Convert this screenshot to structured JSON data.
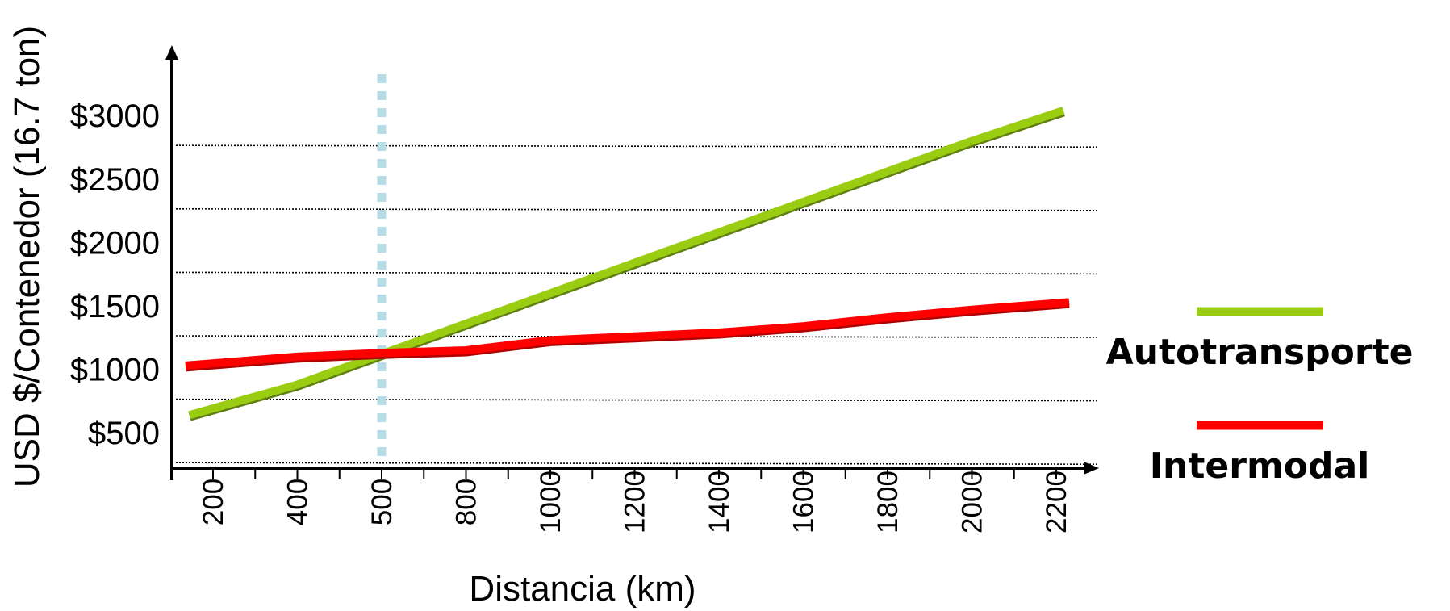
{
  "chart_data": {
    "type": "line",
    "title": "",
    "xlabel": "Distancia (km)",
    "ylabel": "USD $/Contenedor (16.7 ton)",
    "x_tick_labels": [
      "200",
      "400",
      "500",
      "800",
      "1000",
      "1200",
      "1400",
      "1600",
      "1800",
      "2000",
      "2200"
    ],
    "y_tick_labels": [
      "$500",
      "$1000",
      "$1500",
      "$2000",
      "$2500",
      "$3000"
    ],
    "y_tick_values": [
      500,
      1000,
      1500,
      2000,
      2500,
      3000
    ],
    "ylim": [
      200,
      3500
    ],
    "grid": true,
    "reference_line": {
      "x_label": "500",
      "style": "dashed",
      "color": "#b4dde6"
    },
    "legend_position": "right",
    "series": [
      {
        "name": "Autotransporte",
        "color": "#9acd12",
        "values": [
          640,
          880,
          1120,
          1360,
          1600,
          1840,
          2080,
          2320,
          2560,
          2800,
          3040
        ]
      },
      {
        "name": "Intermodal",
        "color": "#ff0000",
        "values": [
          1030,
          1100,
          1130,
          1150,
          1230,
          1260,
          1290,
          1340,
          1410,
          1470,
          1530
        ]
      }
    ]
  },
  "colors": {
    "axis": "#000000",
    "grid": "#000000",
    "autotransporte": "#9acd12",
    "intermodal": "#ff0000",
    "reference": "#b4dde6"
  }
}
